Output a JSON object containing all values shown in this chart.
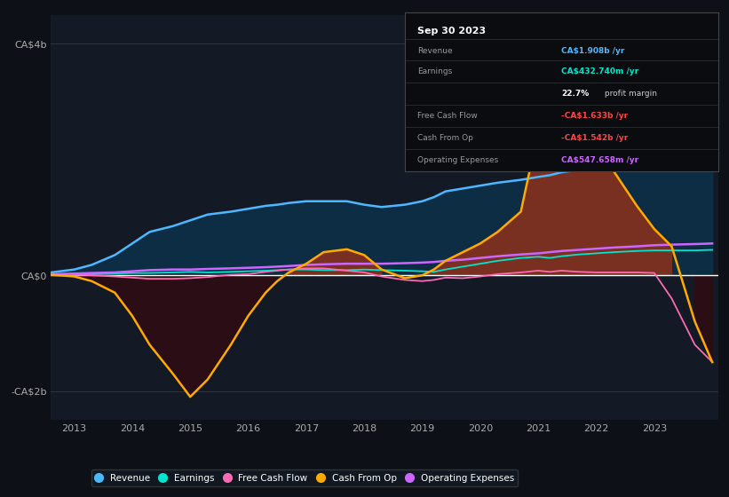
{
  "bg_color": "#0d1117",
  "plot_bg_color": "#131a25",
  "title_box_date": "Sep 30 2023",
  "title_box_rows": [
    {
      "label": "Revenue",
      "value": "CA$1.908b /yr",
      "value_color": "#4db8ff"
    },
    {
      "label": "Earnings",
      "value": "CA$432.740m /yr",
      "value_color": "#00e5cc"
    },
    {
      "label": "",
      "value1": "22.7%",
      "value2": " profit margin",
      "value_color": "#ffffff"
    },
    {
      "label": "Free Cash Flow",
      "value": "-CA$1.633b /yr",
      "value_color": "#ff4444"
    },
    {
      "label": "Cash From Op",
      "value": "-CA$1.542b /yr",
      "value_color": "#ff4444"
    },
    {
      "label": "Operating Expenses",
      "value": "CA$547.658m /yr",
      "value_color": "#cc66ff"
    }
  ],
  "ylim": [
    -2.5,
    4.5
  ],
  "xlim": [
    2012.6,
    2024.1
  ],
  "yticks": [
    -2,
    0,
    4
  ],
  "ytick_labels": [
    "-CA$2b",
    "CA$0",
    "CA$4b"
  ],
  "xticks": [
    2013,
    2014,
    2015,
    2016,
    2017,
    2018,
    2019,
    2020,
    2021,
    2022,
    2023
  ],
  "revenue_color": "#4db8ff",
  "earnings_color": "#00e5cc",
  "fcf_color": "#ff69b4",
  "cashfromop_color": "#ffaa00",
  "opex_color": "#cc66ff",
  "revenue_fill_color": "#0d2d45",
  "cashfromop_fill_positive_color": "#7a3020",
  "cashfromop_fill_negative_color": "#2a0d15",
  "years": [
    2012.6,
    2013.0,
    2013.3,
    2013.7,
    2014.0,
    2014.3,
    2014.7,
    2015.0,
    2015.3,
    2015.7,
    2016.0,
    2016.3,
    2016.5,
    2016.7,
    2017.0,
    2017.3,
    2017.7,
    2018.0,
    2018.3,
    2018.7,
    2019.0,
    2019.2,
    2019.4,
    2019.7,
    2020.0,
    2020.3,
    2020.7,
    2021.0,
    2021.2,
    2021.4,
    2021.7,
    2022.0,
    2022.3,
    2022.7,
    2023.0,
    2023.3,
    2023.7,
    2024.0
  ],
  "revenue": [
    0.05,
    0.1,
    0.18,
    0.35,
    0.55,
    0.75,
    0.85,
    0.95,
    1.05,
    1.1,
    1.15,
    1.2,
    1.22,
    1.25,
    1.28,
    1.28,
    1.28,
    1.22,
    1.18,
    1.22,
    1.28,
    1.35,
    1.45,
    1.5,
    1.55,
    1.6,
    1.65,
    1.7,
    1.73,
    1.78,
    1.82,
    1.85,
    1.88,
    1.9,
    1.91,
    1.91,
    1.91,
    1.93
  ],
  "earnings": [
    0.01,
    0.01,
    0.02,
    0.03,
    0.04,
    0.04,
    0.05,
    0.06,
    0.05,
    0.06,
    0.07,
    0.08,
    0.09,
    0.1,
    0.1,
    0.09,
    0.09,
    0.1,
    0.09,
    0.08,
    0.07,
    0.06,
    0.1,
    0.15,
    0.2,
    0.25,
    0.3,
    0.32,
    0.3,
    0.33,
    0.36,
    0.38,
    0.4,
    0.42,
    0.43,
    0.43,
    0.43,
    0.44
  ],
  "fcf": [
    0.01,
    0.01,
    0.0,
    -0.02,
    -0.04,
    -0.06,
    -0.06,
    -0.05,
    -0.03,
    0.01,
    0.02,
    0.06,
    0.08,
    0.1,
    0.12,
    0.12,
    0.08,
    0.05,
    -0.02,
    -0.08,
    -0.1,
    -0.08,
    -0.04,
    -0.05,
    -0.02,
    0.02,
    0.05,
    0.08,
    0.06,
    0.08,
    0.06,
    0.05,
    0.05,
    0.05,
    0.04,
    -0.4,
    -1.2,
    -1.5
  ],
  "cashfromop": [
    0.01,
    -0.02,
    -0.1,
    -0.3,
    -0.7,
    -1.2,
    -1.7,
    -2.1,
    -1.8,
    -1.2,
    -0.7,
    -0.3,
    -0.1,
    0.05,
    0.2,
    0.4,
    0.45,
    0.35,
    0.1,
    -0.05,
    0.0,
    0.1,
    0.25,
    0.4,
    0.55,
    0.75,
    1.1,
    2.5,
    3.6,
    3.9,
    3.5,
    2.5,
    1.8,
    1.2,
    0.8,
    0.5,
    -0.8,
    -1.5
  ],
  "opex": [
    0.02,
    0.03,
    0.04,
    0.05,
    0.07,
    0.09,
    0.1,
    0.1,
    0.11,
    0.12,
    0.13,
    0.14,
    0.15,
    0.16,
    0.18,
    0.19,
    0.2,
    0.2,
    0.2,
    0.21,
    0.22,
    0.23,
    0.25,
    0.27,
    0.3,
    0.33,
    0.36,
    0.38,
    0.4,
    0.42,
    0.44,
    0.46,
    0.48,
    0.5,
    0.52,
    0.53,
    0.54,
    0.55
  ],
  "legend_items": [
    {
      "label": "Revenue",
      "color": "#4db8ff"
    },
    {
      "label": "Earnings",
      "color": "#00e5cc"
    },
    {
      "label": "Free Cash Flow",
      "color": "#ff69b4"
    },
    {
      "label": "Cash From Op",
      "color": "#ffaa00"
    },
    {
      "label": "Operating Expenses",
      "color": "#cc66ff"
    }
  ]
}
